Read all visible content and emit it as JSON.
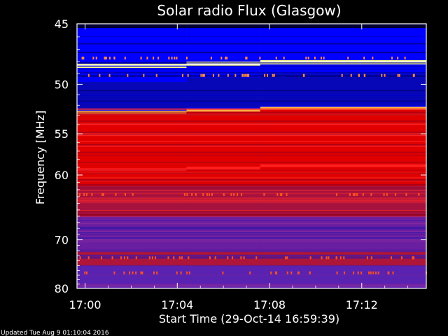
{
  "chart_data": {
    "type": "heatmap",
    "title": "Solar radio Flux (Glasgow)",
    "xlabel": "Start Time (29-Oct-14 16:59:39)",
    "ylabel": "Frequency [MHz]",
    "x_ticks": [
      "17:00",
      "17:04",
      "17:08",
      "17:12"
    ],
    "y_ticks": [
      45,
      50,
      55,
      60,
      70,
      80
    ],
    "ylim": [
      45,
      80
    ],
    "y_scale": "reciprocal",
    "xlim_minutes": [
      -0.35,
      14.8
    ],
    "time_segments": [
      {
        "start_min": -0.35,
        "end_min": 4.4,
        "low_band_top_mhz": 48.0,
        "low_band_bottom_mhz": 49.4,
        "red_band_start_mhz": 52.7,
        "bright_line_mhz": 59.3
      },
      {
        "start_min": 4.4,
        "end_min": 7.6,
        "low_band_top_mhz": 47.6,
        "low_band_bottom_mhz": 49.0,
        "red_band_start_mhz": 52.5,
        "bright_line_mhz": 59.1
      },
      {
        "start_min": 7.6,
        "end_min": 14.8,
        "low_band_top_mhz": 47.3,
        "low_band_bottom_mhz": 48.7,
        "red_band_start_mhz": 52.3,
        "bright_line_mhz": 58.8
      }
    ],
    "bright_features_mhz": [
      48.3,
      52.6,
      59.2,
      73.5
    ],
    "colormap": {
      "low": "#000033",
      "mid_low": "#0000ff",
      "mid": "#4b2fbf",
      "high": "#e00000",
      "peak": "#ffff80"
    }
  },
  "footer": {
    "updated": "Updated Tue Aug  9 01:10:04 2016"
  }
}
